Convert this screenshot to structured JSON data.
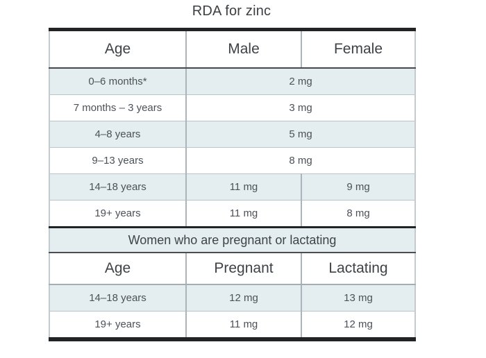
{
  "title": "RDA for zinc",
  "colors": {
    "highlight_row_bg": "#e4eef0",
    "thick_border": "#212325",
    "header_underline": "#45484c",
    "row_divider": "#b9c4c9",
    "column_divider": "#aab4ba",
    "heading_text": "#3e4246",
    "body_text": "#4c5157"
  },
  "chart_data": {
    "type": "table",
    "title": "RDA for zinc",
    "section1": {
      "headers": [
        "Age",
        "Male",
        "Female"
      ],
      "rows": [
        {
          "age": "0–6 months*",
          "value": "2 mg",
          "merged": true
        },
        {
          "age": "7 months – 3 years",
          "value": "3 mg",
          "merged": true
        },
        {
          "age": "4–8 years",
          "value": "5 mg",
          "merged": true
        },
        {
          "age": "9–13 years",
          "value": "8 mg",
          "merged": true
        },
        {
          "age": "14–18 years",
          "male": "11 mg",
          "female": "9 mg",
          "merged": false
        },
        {
          "age": "19+ years",
          "male": "11 mg",
          "female": "8 mg",
          "merged": false
        }
      ]
    },
    "section2": {
      "title": "Women who are pregnant or lactating",
      "headers": [
        "Age",
        "Pregnant",
        "Lactating"
      ],
      "rows": [
        {
          "age": "14–18 years",
          "pregnant": "12 mg",
          "lactating": "13 mg"
        },
        {
          "age": "19+ years",
          "pregnant": "11 mg",
          "lactating": "12 mg"
        }
      ]
    }
  }
}
